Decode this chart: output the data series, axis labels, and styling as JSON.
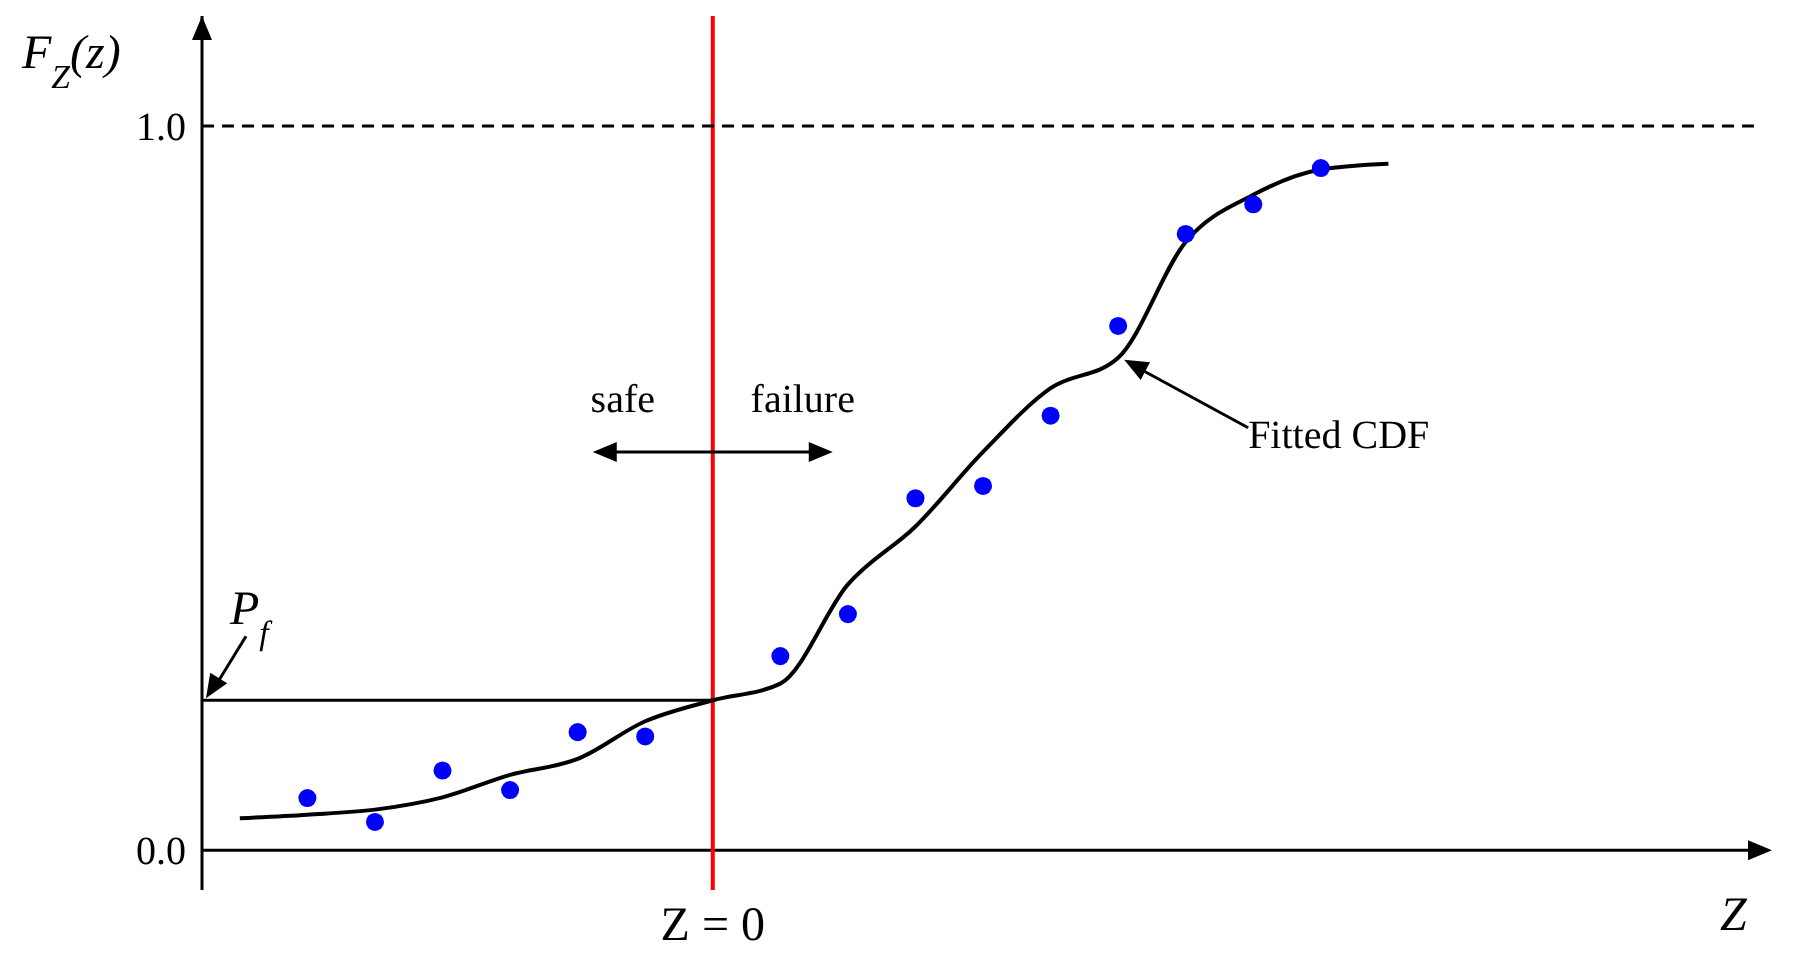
{
  "chart_data": {
    "type": "scatter",
    "ylabel": "F$_{Z}$(z)",
    "categories": [
      null,
      null,
      null,
      null,
      null,
      null,
      null,
      "Z = 0",
      null,
      null,
      null,
      null,
      null,
      null,
      null,
      null,
      null,
      null
    ],
    "ylim": [
      -0.055,
      1.152
    ],
    "yticks": [
      {
        "value": 0,
        "label": "0.0"
      },
      {
        "value": 1,
        "label": "1.0"
      }
    ],
    "series": [
      {
        "color": "#0000ff",
        "marker": "circle",
        "values": [
          null,
          0.072,
          0.039,
          0.11,
          0.083,
          0.163,
          0.157,
          null,
          0.268,
          0.326,
          0.486,
          0.503,
          0.6,
          0.724,
          0.851,
          0.892,
          0.942,
          null
        ]
      },
      {
        "type": "line",
        "color": "#000000",
        "marker": "none",
        "line_style": "solid",
        "values": [
          0.044,
          0.049,
          0.056,
          0.073,
          0.104,
          0.126,
          0.178,
          0.207,
          0.23,
          0.367,
          0.447,
          0.55,
          0.638,
          0.68,
          0.84,
          0.905,
          0.94,
          0.948
        ]
      }
    ],
    "ref_lines": [
      {
        "axis": "x",
        "value": "Z = 0",
        "color": "#ff0000",
        "line_style": "solid"
      },
      {
        "axis": "y",
        "value": 1,
        "color": "#000000",
        "line_style": "dashed"
      },
      {
        "axis": "y",
        "value": 0.207,
        "label": "P$_{f}$",
        "color": "#000000",
        "line_style": "solid"
      }
    ],
    "annotations": [
      "safe",
      "failure",
      "Fitted CDF",
      "Z"
    ]
  }
}
